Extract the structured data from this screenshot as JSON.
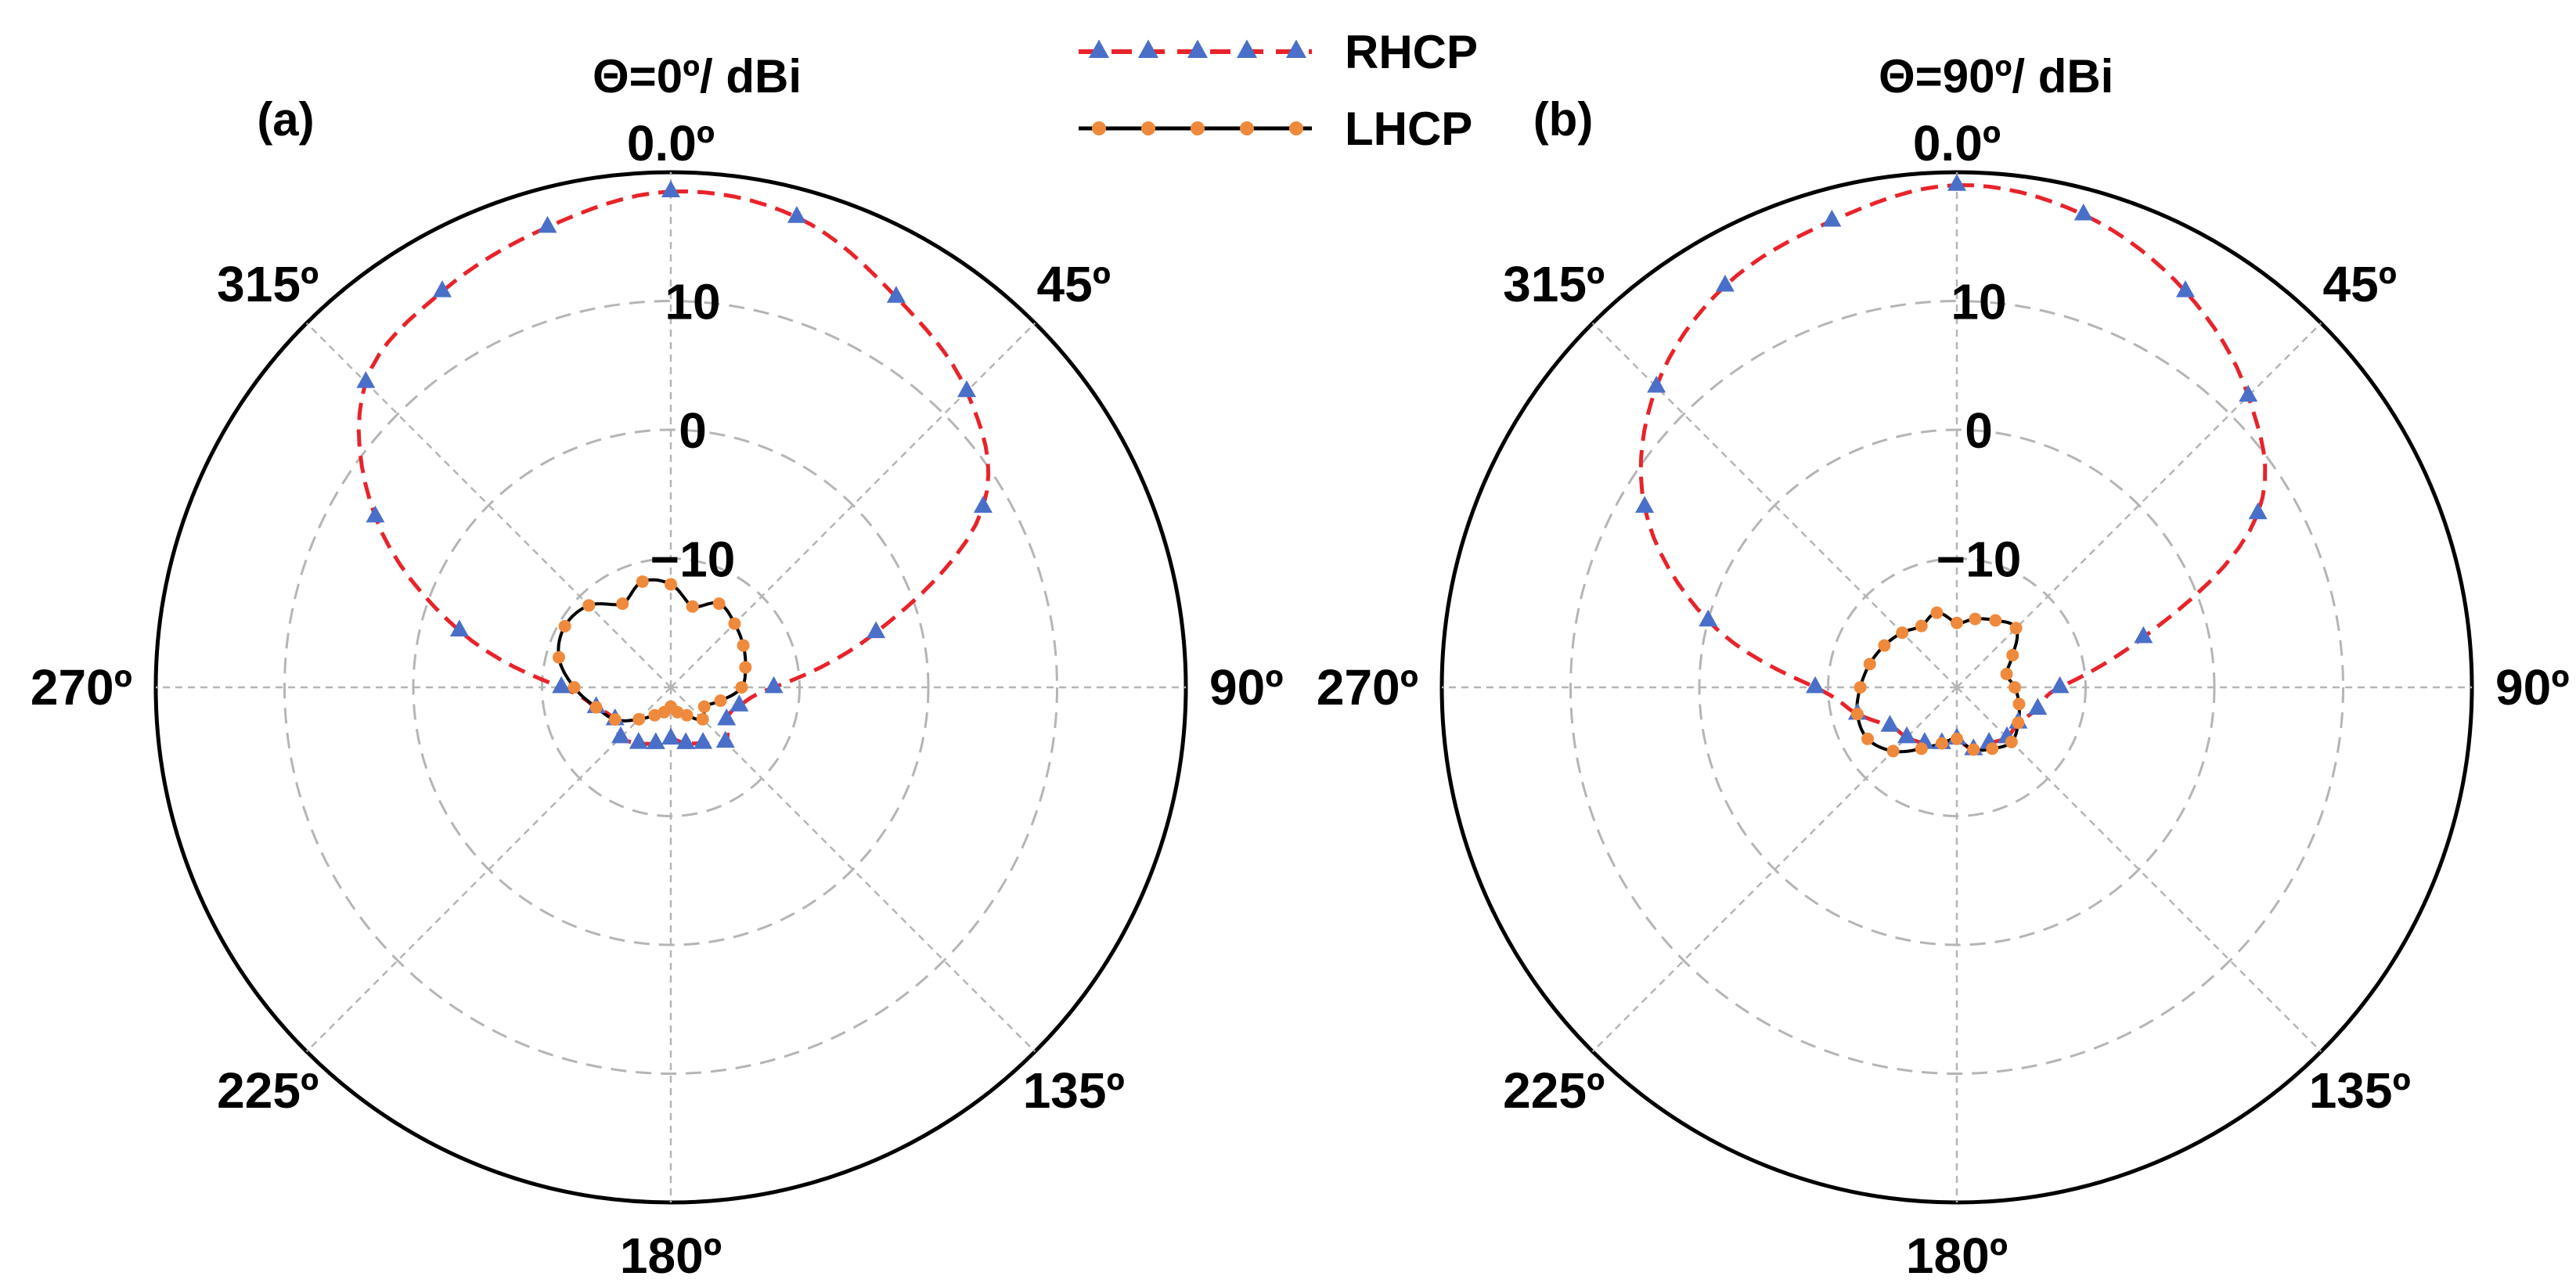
{
  "chart_data": [
    {
      "type": "polar-line",
      "panel_label": "(a)",
      "title": "Θ=0º/ dBi",
      "r_range": [
        -20,
        20
      ],
      "r_ticks": [
        -10,
        0,
        10
      ],
      "r_tick_labels": [
        "−10",
        "0",
        "10"
      ],
      "top_label": "0.0º",
      "angle_labels": [
        "45º",
        "90º",
        "135º",
        "180º",
        "225º",
        "270º",
        "315º"
      ],
      "grid": true,
      "theta_deg": [
        0,
        15,
        30,
        45,
        60,
        75,
        90,
        105,
        120,
        135,
        150,
        165,
        180,
        195,
        210,
        225,
        240,
        255,
        270,
        285,
        300,
        315,
        330,
        345
      ],
      "series": [
        {
          "name": "RHCP",
          "values": [
            18.5,
            17.8,
            15.0,
            12.5,
            8.0,
            -3.5,
            -12.0,
            -14.5,
            -15.0,
            -14.0,
            -15.0,
            -15.5,
            -16.0,
            -15.5,
            -15.0,
            -14.5,
            -15.0,
            -14.0,
            -11.5,
            -3.0,
            6.5,
            13.5,
            15.5,
            17.0
          ]
        },
        {
          "name": "LHCP",
          "values": [
            -12.0,
            -13.5,
            -12.5,
            -13.0,
            -13.5,
            -14.0,
            -14.5,
            -16.0,
            -17.0,
            -16.5,
            -17.5,
            -18.0,
            -18.5,
            -18.0,
            -17.5,
            -16.5,
            -15.0,
            -14.0,
            -12.5,
            -11.0,
            -10.5,
            -11.0,
            -12.5,
            -11.5
          ]
        }
      ]
    },
    {
      "type": "polar-line",
      "panel_label": "(b)",
      "title": "Θ=90º/ dBi",
      "r_range": [
        -20,
        20
      ],
      "r_ticks": [
        -10,
        0,
        10
      ],
      "r_tick_labels": [
        "−10",
        "0",
        "10"
      ],
      "top_label": "0.0º",
      "angle_labels": [
        "45º",
        "90º",
        "135º",
        "180º",
        "225º",
        "270º",
        "315º"
      ],
      "grid": true,
      "theta_deg": [
        0,
        15,
        30,
        45,
        60,
        75,
        90,
        105,
        120,
        135,
        150,
        165,
        180,
        195,
        210,
        225,
        240,
        255,
        270,
        285,
        300,
        315,
        330,
        345
      ],
      "series": [
        {
          "name": "RHCP",
          "values": [
            19.0,
            18.0,
            15.5,
            12.0,
            7.0,
            -5.0,
            -12.0,
            -13.5,
            -14.5,
            -14.5,
            -15.0,
            -15.0,
            -16.0,
            -15.5,
            -15.0,
            -14.5,
            -14.0,
            -12.0,
            -9.0,
            0.0,
            8.0,
            13.0,
            16.0,
            17.5
          ]
        },
        {
          "name": "LHCP",
          "values": [
            -15.0,
            -14.5,
            -14.0,
            -13.5,
            -15.0,
            -16.0,
            -15.5,
            -15.0,
            -14.5,
            -14.0,
            -14.5,
            -15.0,
            -16.0,
            -15.5,
            -14.5,
            -13.0,
            -12.0,
            -12.0,
            -12.5,
            -13.0,
            -13.5,
            -14.0,
            -14.5,
            -14.0
          ]
        }
      ]
    }
  ],
  "legend": {
    "placement": "top-center",
    "entries": [
      {
        "label": "RHCP",
        "line_color": "#e8232a",
        "marker_color": "#4a6fc9",
        "marker": "triangle",
        "dash": true
      },
      {
        "label": "LHCP",
        "line_color": "#000000",
        "marker_color": "#ef8a3c",
        "marker": "circle",
        "dash": false
      }
    ]
  }
}
